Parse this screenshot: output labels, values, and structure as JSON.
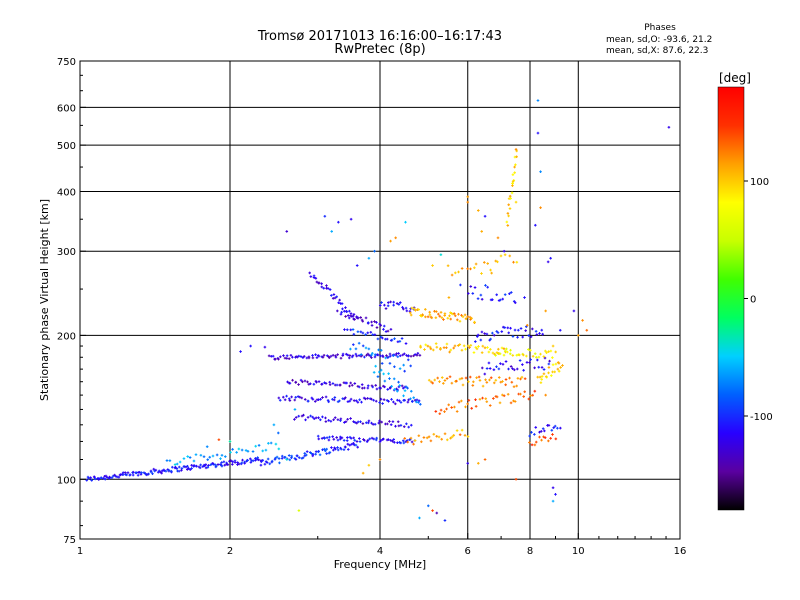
{
  "chart_data": {
    "type": "scatter",
    "title": "Tromsø 20171013 16:16:00–16:17:43",
    "subtitle": "RwPretec (8p)",
    "xlabel": "Frequency [MHz]",
    "ylabel": "Stationary phase Virtual Height [km]",
    "x_scale": "log",
    "y_scale": "log",
    "xlim": [
      1,
      16
    ],
    "ylim": [
      75,
      750
    ],
    "x_ticks": [
      1,
      2,
      4,
      6,
      8,
      10,
      16
    ],
    "y_ticks": [
      75,
      100,
      200,
      300,
      400,
      500,
      600,
      750
    ],
    "x_grid": [
      2,
      4,
      6,
      8,
      10
    ],
    "y_grid": [
      100,
      200,
      300,
      400,
      500,
      600
    ],
    "grid": true,
    "stats": {
      "header": "Phases",
      "line_o": "mean, sd,O: -93.6, 21.2",
      "line_x": "mean, sd,X:  87.6, 22.3"
    },
    "colorbar": {
      "label": "[deg]",
      "range": [
        -180,
        180
      ],
      "ticks": [
        100,
        0,
        -100
      ],
      "colors": [
        "#000000",
        "#5a00a0",
        "#2800ff",
        "#0060ff",
        "#00d0ff",
        "#00ff60",
        "#40ff00",
        "#c8ff00",
        "#ffff00",
        "#ffa000",
        "#ff3000",
        "#ff0000"
      ]
    },
    "traces": [
      {
        "x0": 1.03,
        "x1": 2.3,
        "h0": 100,
        "h1": 110,
        "phase": -110,
        "n": 150,
        "spread": 0.012
      },
      {
        "x0": 1.5,
        "x1": 2.5,
        "h0": 108,
        "h1": 118,
        "phase": -60,
        "n": 35,
        "spread": 0.02
      },
      {
        "x0": 2.3,
        "x1": 3.6,
        "h0": 108,
        "h1": 118,
        "phase": -100,
        "n": 70,
        "spread": 0.015
      },
      {
        "x0": 2.4,
        "x1": 4.8,
        "h0": 180,
        "h1": 182,
        "phase": -125,
        "n": 90,
        "spread": 0.01
      },
      {
        "x0": 2.6,
        "x1": 4.5,
        "h0": 160,
        "h1": 155,
        "phase": -125,
        "n": 60,
        "spread": 0.012
      },
      {
        "x0": 2.5,
        "x1": 4.8,
        "h0": 148,
        "h1": 145,
        "phase": -115,
        "n": 70,
        "spread": 0.012
      },
      {
        "x0": 2.7,
        "x1": 4.6,
        "h0": 135,
        "h1": 130,
        "phase": -120,
        "n": 55,
        "spread": 0.012
      },
      {
        "x0": 3.0,
        "x1": 4.7,
        "h0": 122,
        "h1": 120,
        "phase": -110,
        "n": 55,
        "spread": 0.01
      },
      {
        "x0": 2.9,
        "x1": 3.6,
        "h0": 270,
        "h1": 215,
        "phase": -120,
        "n": 35,
        "spread": 0.015
      },
      {
        "x0": 3.3,
        "x1": 4.2,
        "h0": 225,
        "h1": 205,
        "phase": -125,
        "n": 30,
        "spread": 0.015
      },
      {
        "x0": 3.4,
        "x1": 4.5,
        "h0": 205,
        "h1": 195,
        "phase": -100,
        "n": 25,
        "spread": 0.015
      },
      {
        "x0": 4.0,
        "x1": 4.7,
        "h0": 232,
        "h1": 228,
        "phase": -115,
        "n": 20,
        "spread": 0.02
      },
      {
        "x0": 3.5,
        "x1": 4.6,
        "h0": 190,
        "h1": 172,
        "phase": -80,
        "n": 25,
        "spread": 0.03
      },
      {
        "x0": 3.9,
        "x1": 4.8,
        "h0": 170,
        "h1": 145,
        "phase": -70,
        "n": 25,
        "spread": 0.03
      },
      {
        "x0": 4.6,
        "x1": 6.2,
        "h0": 225,
        "h1": 215,
        "phase": 110,
        "n": 50,
        "spread": 0.02
      },
      {
        "x0": 4.8,
        "x1": 7.2,
        "h0": 190,
        "h1": 185,
        "phase": 100,
        "n": 45,
        "spread": 0.02
      },
      {
        "x0": 5.0,
        "x1": 7.8,
        "h0": 160,
        "h1": 160,
        "phase": 120,
        "n": 45,
        "spread": 0.025
      },
      {
        "x0": 5.2,
        "x1": 8.2,
        "h0": 140,
        "h1": 150,
        "phase": 130,
        "n": 40,
        "spread": 0.025
      },
      {
        "x0": 4.5,
        "x1": 6.0,
        "h0": 120,
        "h1": 125,
        "phase": 115,
        "n": 25,
        "spread": 0.02
      },
      {
        "x0": 6.2,
        "x1": 8.5,
        "h0": 200,
        "h1": 205,
        "phase": -110,
        "n": 35,
        "spread": 0.03
      },
      {
        "x0": 6.4,
        "x1": 8.8,
        "h0": 170,
        "h1": 175,
        "phase": -115,
        "n": 30,
        "spread": 0.03
      },
      {
        "x0": 6.8,
        "x1": 9.0,
        "h0": 185,
        "h1": 182,
        "phase": 80,
        "n": 30,
        "spread": 0.02
      },
      {
        "x0": 8.0,
        "x1": 9.2,
        "h0": 125,
        "h1": 130,
        "phase": -110,
        "n": 15,
        "spread": 0.02
      },
      {
        "x0": 8.0,
        "x1": 9.0,
        "h0": 120,
        "h1": 122,
        "phase": 140,
        "n": 12,
        "spread": 0.02
      },
      {
        "x0": 8.3,
        "x1": 9.3,
        "h0": 160,
        "h1": 175,
        "phase": 95,
        "n": 20,
        "spread": 0.03
      },
      {
        "x0": 5.5,
        "x1": 7.5,
        "h0": 270,
        "h1": 290,
        "phase": 105,
        "n": 20,
        "spread": 0.04
      },
      {
        "x0": 6.0,
        "x1": 7.5,
        "h0": 250,
        "h1": 240,
        "phase": -110,
        "n": 20,
        "spread": 0.04
      },
      {
        "x0": 7.2,
        "x1": 7.5,
        "h0": 340,
        "h1": 480,
        "phase": 95,
        "n": 20,
        "spread": 0.02
      }
    ],
    "scatter": [
      {
        "f": 3.1,
        "h": 355,
        "p": -100
      },
      {
        "f": 3.3,
        "h": 345,
        "p": -110
      },
      {
        "f": 3.5,
        "h": 350,
        "p": -120
      },
      {
        "f": 3.2,
        "h": 330,
        "p": -60
      },
      {
        "f": 2.6,
        "h": 330,
        "p": -130
      },
      {
        "f": 4.3,
        "h": 320,
        "p": 120
      },
      {
        "f": 4.2,
        "h": 315,
        "p": 115
      },
      {
        "f": 4.5,
        "h": 345,
        "p": -50
      },
      {
        "f": 3.8,
        "h": 290,
        "p": -60
      },
      {
        "f": 3.6,
        "h": 280,
        "p": -110
      },
      {
        "f": 3.9,
        "h": 300,
        "p": -80
      },
      {
        "f": 5.3,
        "h": 295,
        "p": -40
      },
      {
        "f": 5.1,
        "h": 280,
        "p": 100
      },
      {
        "f": 6.4,
        "h": 330,
        "p": 110
      },
      {
        "f": 6.5,
        "h": 355,
        "p": -110
      },
      {
        "f": 6.3,
        "h": 365,
        "p": 110
      },
      {
        "f": 6.0,
        "h": 380,
        "p": 120
      },
      {
        "f": 6.0,
        "h": 390,
        "p": 115
      },
      {
        "f": 6.9,
        "h": 320,
        "p": 120
      },
      {
        "f": 7.1,
        "h": 300,
        "p": -120
      },
      {
        "f": 7.4,
        "h": 420,
        "p": 100
      },
      {
        "f": 7.45,
        "h": 450,
        "p": 110
      },
      {
        "f": 7.5,
        "h": 490,
        "p": 120
      },
      {
        "f": 7.5,
        "h": 380,
        "p": 95
      },
      {
        "f": 8.3,
        "h": 620,
        "p": -70
      },
      {
        "f": 8.3,
        "h": 530,
        "p": -110
      },
      {
        "f": 8.4,
        "h": 440,
        "p": -70
      },
      {
        "f": 8.2,
        "h": 340,
        "p": -110
      },
      {
        "f": 8.8,
        "h": 290,
        "p": -110
      },
      {
        "f": 8.7,
        "h": 285,
        "p": -120
      },
      {
        "f": 8.4,
        "h": 370,
        "p": 120
      },
      {
        "f": 9.2,
        "h": 205,
        "p": -110
      },
      {
        "f": 9.8,
        "h": 225,
        "p": -120
      },
      {
        "f": 10.2,
        "h": 215,
        "p": 120
      },
      {
        "f": 10.4,
        "h": 205,
        "p": 130
      },
      {
        "f": 10.0,
        "h": 200,
        "p": 115
      },
      {
        "f": 15.2,
        "h": 545,
        "p": -120
      },
      {
        "f": 5.0,
        "h": 88,
        "p": -80
      },
      {
        "f": 5.1,
        "h": 86,
        "p": 140
      },
      {
        "f": 5.2,
        "h": 85,
        "p": -140
      },
      {
        "f": 5.4,
        "h": 82,
        "p": -100
      },
      {
        "f": 4.8,
        "h": 83,
        "p": -60
      },
      {
        "f": 8.9,
        "h": 96,
        "p": -120
      },
      {
        "f": 9.0,
        "h": 93,
        "p": -110
      },
      {
        "f": 8.9,
        "h": 90,
        "p": -60
      },
      {
        "f": 2.75,
        "h": 86,
        "p": 60
      },
      {
        "f": 2.6,
        "h": 110,
        "p": -40
      },
      {
        "f": 2.35,
        "h": 189,
        "p": -120
      },
      {
        "f": 2.2,
        "h": 190,
        "p": -110
      },
      {
        "f": 2.1,
        "h": 185,
        "p": -110
      },
      {
        "f": 3.7,
        "h": 103,
        "p": 110
      },
      {
        "f": 3.8,
        "h": 107,
        "p": 100
      },
      {
        "f": 4.0,
        "h": 110,
        "p": 120
      },
      {
        "f": 6.0,
        "h": 108,
        "p": -120
      },
      {
        "f": 6.3,
        "h": 108,
        "p": 110
      },
      {
        "f": 6.5,
        "h": 110,
        "p": 130
      },
      {
        "f": 7.5,
        "h": 100,
        "p": 140
      },
      {
        "f": 1.8,
        "h": 117,
        "p": -70
      },
      {
        "f": 1.9,
        "h": 121,
        "p": 140
      },
      {
        "f": 2.0,
        "h": 120,
        "p": -30
      },
      {
        "f": 2.45,
        "h": 130,
        "p": -60
      },
      {
        "f": 2.5,
        "h": 125,
        "p": -80
      },
      {
        "f": 2.7,
        "h": 140,
        "p": -60
      },
      {
        "f": 5.5,
        "h": 240,
        "p": 110
      },
      {
        "f": 5.8,
        "h": 255,
        "p": -100
      },
      {
        "f": 6.7,
        "h": 270,
        "p": 110
      },
      {
        "f": 7.8,
        "h": 240,
        "p": -110
      },
      {
        "f": 7.9,
        "h": 210,
        "p": 120
      },
      {
        "f": 8.6,
        "h": 225,
        "p": 115
      },
      {
        "f": 8.9,
        "h": 190,
        "p": 100
      },
      {
        "f": 9.1,
        "h": 170,
        "p": 110
      },
      {
        "f": 8.6,
        "h": 150,
        "p": 120
      }
    ]
  }
}
